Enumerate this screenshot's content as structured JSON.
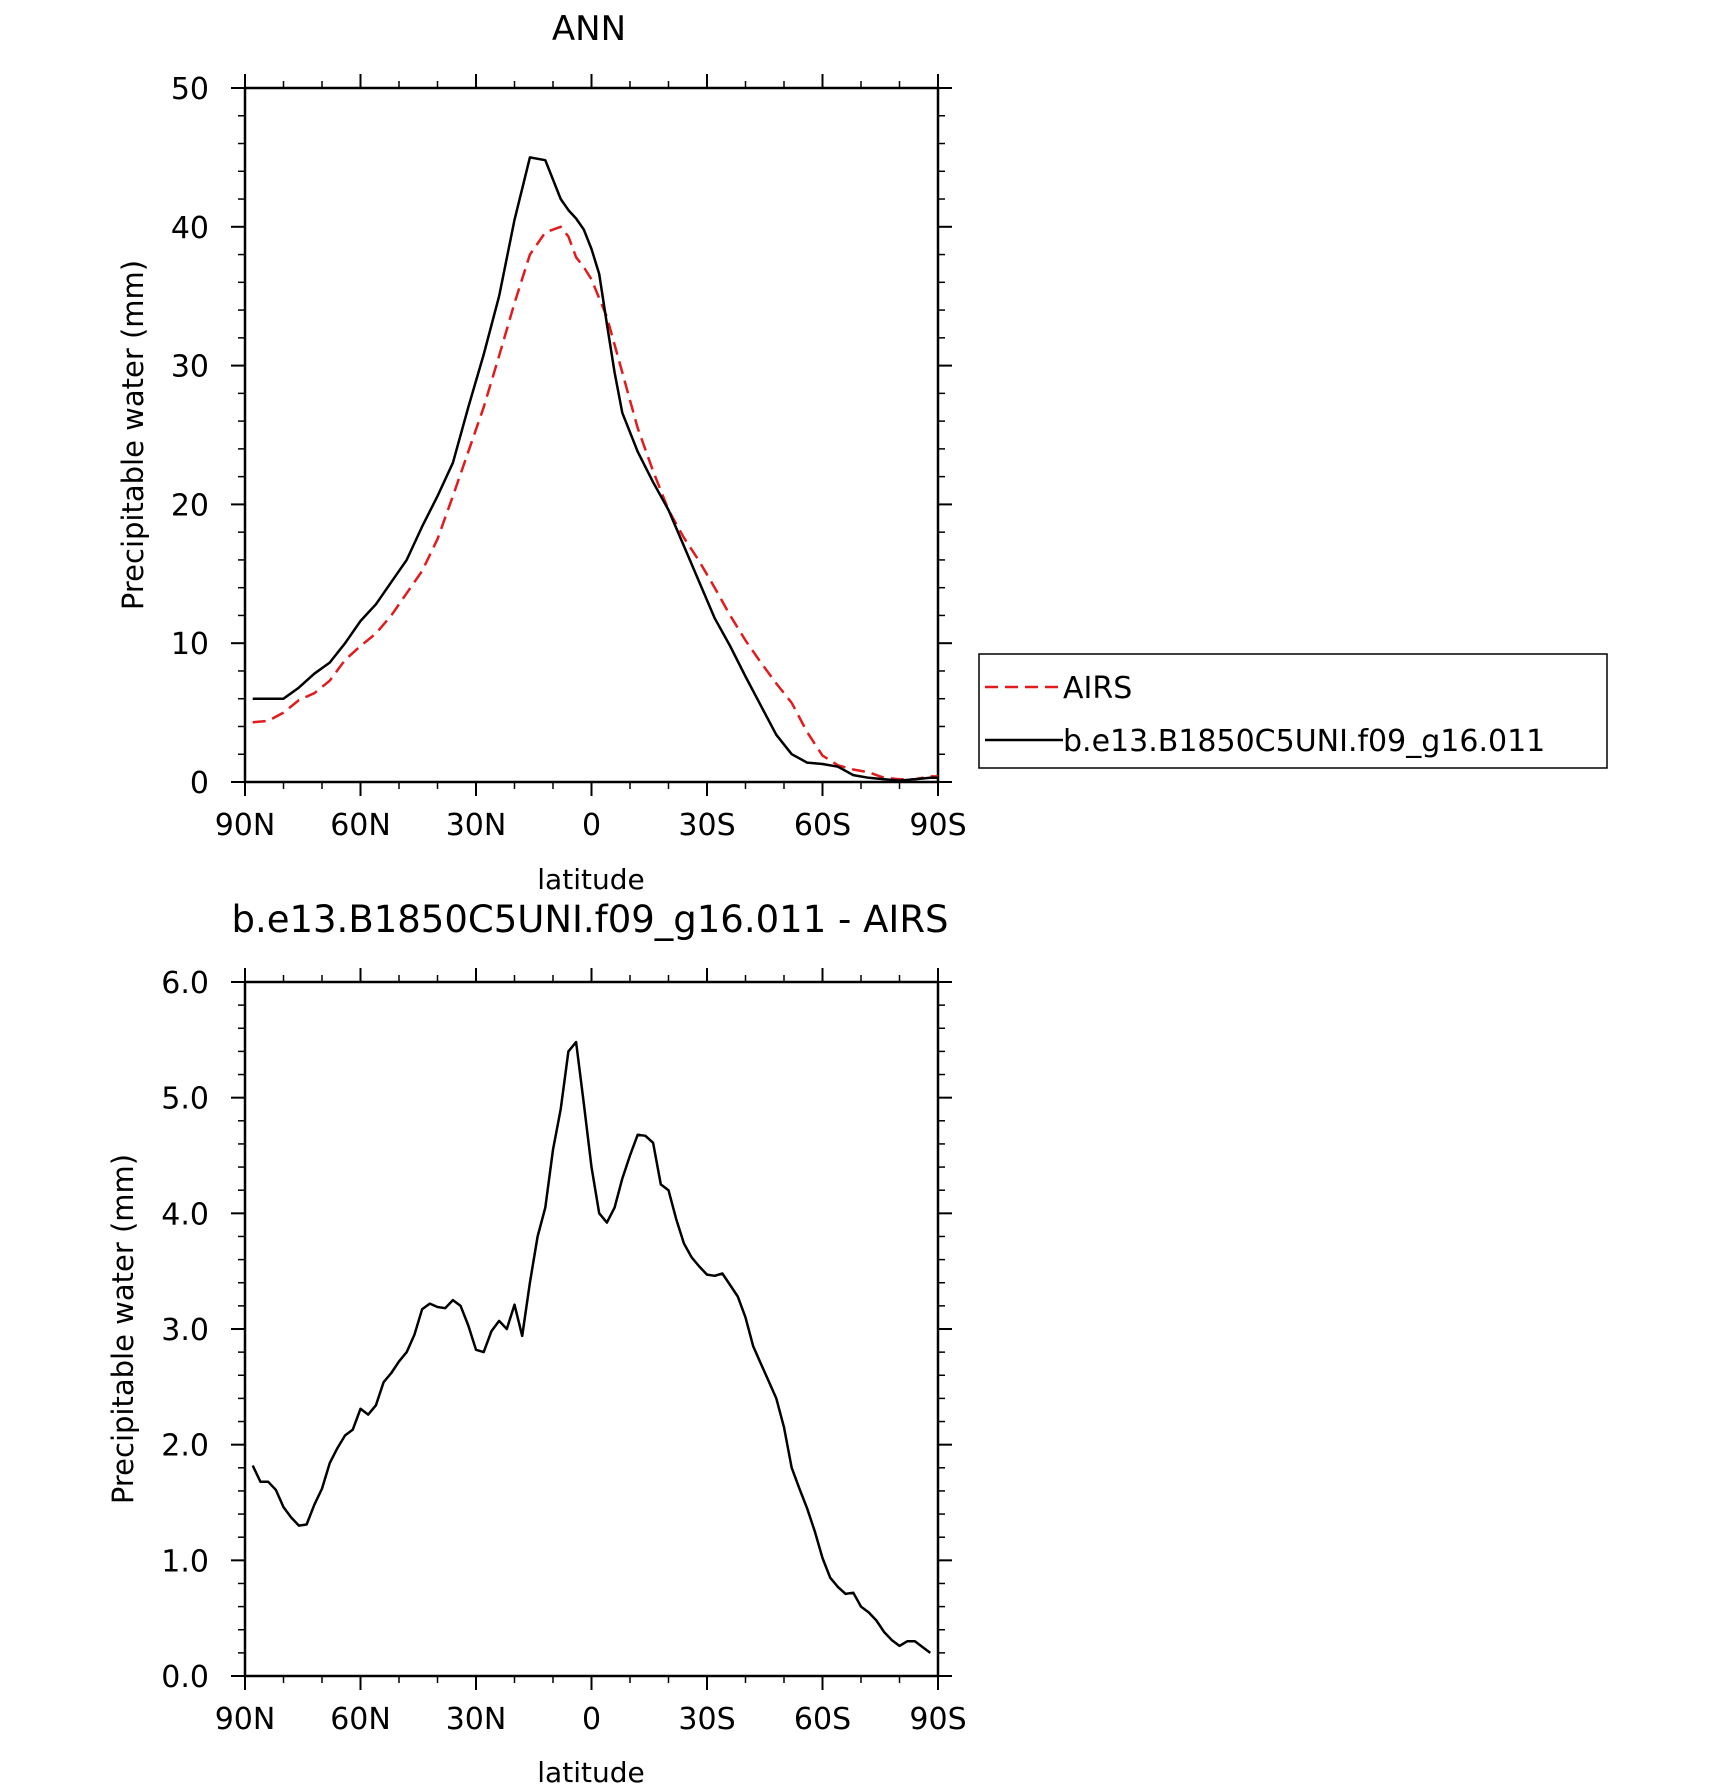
{
  "chart_data": [
    {
      "type": "line",
      "title": "ANN",
      "xlabel": "latitude",
      "ylabel": "Precipitable water (mm)",
      "xlim": [
        90,
        -90
      ],
      "ylim": [
        0,
        50
      ],
      "x_ticks": [
        90,
        60,
        30,
        0,
        -30,
        -60,
        -90
      ],
      "x_tick_labels": [
        "90N",
        "60N",
        "30N",
        "0",
        "30S",
        "60S",
        "90S"
      ],
      "y_ticks": [
        0,
        10,
        20,
        30,
        40,
        50
      ],
      "y_tick_labels": [
        "0",
        "10",
        "20",
        "30",
        "40",
        "50"
      ],
      "grid": false,
      "legend": {
        "position": "right",
        "entries": [
          "AIRS",
          "b.e13.B1850C5UNI.f09_g16.011"
        ]
      },
      "series": [
        {
          "name": "AIRS",
          "color": "#e31a1c",
          "dash": "dashed",
          "x": [
            88,
            84,
            80,
            76,
            72,
            68,
            64,
            60,
            56,
            52,
            48,
            44,
            40,
            36,
            32,
            28,
            24,
            20,
            16,
            12,
            8,
            6,
            4,
            2,
            0,
            -4,
            -8,
            -12,
            -16,
            -20,
            -24,
            -28,
            -32,
            -36,
            -40,
            -44,
            -48,
            -52,
            -56,
            -60,
            -64,
            -68,
            -72,
            -76,
            -80,
            -84,
            -88,
            -90
          ],
          "y": [
            4.3,
            4.4,
            5.0,
            5.9,
            6.4,
            7.3,
            8.8,
            9.8,
            10.7,
            12.0,
            13.6,
            15.2,
            17.5,
            20.6,
            23.8,
            27.0,
            30.7,
            34.5,
            38.0,
            39.6,
            40.0,
            39.3,
            37.8,
            37.1,
            36.2,
            33.5,
            29.5,
            25.5,
            22.4,
            19.6,
            17.6,
            15.9,
            14.0,
            12.0,
            10.2,
            8.6,
            7.1,
            5.7,
            3.6,
            1.9,
            1.2,
            0.9,
            0.7,
            0.3,
            0.2,
            0.2,
            0.4,
            0.4
          ]
        },
        {
          "name": "b.e13.B1850C5UNI.f09_g16.011",
          "color": "#000000",
          "dash": "solid",
          "x": [
            88,
            84,
            80,
            76,
            72,
            68,
            64,
            60,
            56,
            52,
            48,
            44,
            40,
            36,
            32,
            28,
            24,
            20,
            16,
            12,
            8,
            6,
            4,
            2,
            0,
            -2,
            -4,
            -6,
            -8,
            -12,
            -16,
            -20,
            -24,
            -28,
            -32,
            -36,
            -40,
            -44,
            -48,
            -52,
            -56,
            -60,
            -64,
            -68,
            -72,
            -76,
            -80,
            -84,
            -88,
            -90
          ],
          "y": [
            6.0,
            6.0,
            6.0,
            6.8,
            7.8,
            8.6,
            10.0,
            11.6,
            12.8,
            14.4,
            16.0,
            18.4,
            20.6,
            23.0,
            27.0,
            30.8,
            35.0,
            40.5,
            45.0,
            44.8,
            42.0,
            41.2,
            40.6,
            39.8,
            38.4,
            36.6,
            33.0,
            29.5,
            26.6,
            23.8,
            21.6,
            19.6,
            17.0,
            14.4,
            11.8,
            9.8,
            7.6,
            5.5,
            3.4,
            2.0,
            1.4,
            1.3,
            1.1,
            0.5,
            0.3,
            0.2,
            0.1,
            0.2,
            0.3,
            0.3
          ]
        }
      ]
    },
    {
      "type": "line",
      "title": "b.e13.B1850C5UNI.f09_g16.011 - AIRS",
      "xlabel": "latitude",
      "ylabel": "Precipitable water (mm)",
      "xlim": [
        90,
        -90
      ],
      "ylim": [
        0,
        6
      ],
      "x_ticks": [
        90,
        60,
        30,
        0,
        -30,
        -60,
        -90
      ],
      "x_tick_labels": [
        "90N",
        "60N",
        "30N",
        "0",
        "30S",
        "60S",
        "90S"
      ],
      "y_ticks": [
        0,
        1,
        2,
        3,
        4,
        5,
        6
      ],
      "y_tick_labels": [
        "0.0",
        "1.0",
        "2.0",
        "3.0",
        "4.0",
        "5.0",
        "6.0"
      ],
      "grid": false,
      "series": [
        {
          "color": "#000000",
          "dash": "solid",
          "x": [
            88,
            86,
            84,
            82,
            80,
            78,
            76,
            74,
            72,
            70,
            68,
            66,
            64,
            62,
            60,
            58,
            56,
            54,
            52,
            50,
            48,
            46,
            44,
            42,
            40,
            38,
            36,
            34,
            32,
            30,
            28,
            26,
            24,
            22,
            20,
            18,
            16,
            14,
            12,
            10,
            8,
            6,
            4,
            2,
            0,
            -2,
            -4,
            -6,
            -8,
            -10,
            -12,
            -14,
            -16,
            -18,
            -20,
            -22,
            -24,
            -26,
            -28,
            -30,
            -32,
            -34,
            -36,
            -38,
            -40,
            -42,
            -44,
            -46,
            -48,
            -50,
            -52,
            -54,
            -56,
            -58,
            -60,
            -62,
            -64,
            -66,
            -68,
            -70,
            -72,
            -74,
            -76,
            -78,
            -80,
            -82,
            -84,
            -86,
            -88
          ],
          "y": [
            1.82,
            1.68,
            1.68,
            1.61,
            1.46,
            1.37,
            1.3,
            1.31,
            1.48,
            1.62,
            1.84,
            1.97,
            2.08,
            2.13,
            2.31,
            2.26,
            2.34,
            2.54,
            2.62,
            2.72,
            2.8,
            2.95,
            3.17,
            3.22,
            3.19,
            3.18,
            3.25,
            3.2,
            3.03,
            2.82,
            2.8,
            2.98,
            3.07,
            3.0,
            3.21,
            2.94,
            3.4,
            3.8,
            4.05,
            4.55,
            4.9,
            5.4,
            5.48,
            4.95,
            4.4,
            4.0,
            3.92,
            4.05,
            4.3,
            4.5,
            4.68,
            4.67,
            4.61,
            4.25,
            4.2,
            3.95,
            3.74,
            3.62,
            3.54,
            3.47,
            3.46,
            3.48,
            3.38,
            3.28,
            3.1,
            2.85,
            2.7,
            2.55,
            2.4,
            2.15,
            1.8,
            1.62,
            1.45,
            1.25,
            1.02,
            0.85,
            0.77,
            0.71,
            0.72,
            0.6,
            0.55,
            0.48,
            0.38,
            0.31,
            0.26,
            0.3,
            0.3,
            0.25,
            0.2
          ]
        }
      ]
    }
  ]
}
